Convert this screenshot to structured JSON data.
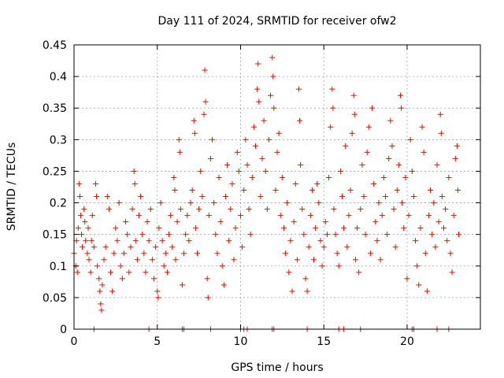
{
  "chart_data": {
    "type": "scatter",
    "title": "Day 111 of 2024, SRMTID for receiver ofw2",
    "xlabel": "GPS time / hours",
    "ylabel": "SRMTID / TECUs",
    "xlim": [
      0,
      24.4
    ],
    "ylim": [
      0,
      0.45
    ],
    "xticks": [
      0,
      5,
      10,
      15,
      20
    ],
    "xtick_labels": [
      "0",
      "5",
      "10",
      "15",
      "20"
    ],
    "yticks": [
      0,
      0.05,
      0.1,
      0.15,
      0.2,
      0.25,
      0.3,
      0.35,
      0.4,
      0.45
    ],
    "ytick_labels": [
      "0",
      "0.05",
      "0.1",
      "0.15",
      "0.2",
      "0.25",
      "0.3",
      "0.35",
      "0.4",
      "0.45"
    ],
    "grid": true,
    "marker": "+",
    "color": "#ff0000",
    "series": [
      {
        "name": "SRMTID",
        "points": [
          [
            0.0,
            0.12
          ],
          [
            0.1,
            0.1
          ],
          [
            0.15,
            0.14
          ],
          [
            0.2,
            0.09
          ],
          [
            0.25,
            0.16
          ],
          [
            0.3,
            0.23
          ],
          [
            0.35,
            0.21
          ],
          [
            0.4,
            0.18
          ],
          [
            0.45,
            0.15
          ],
          [
            0.5,
            0.13
          ],
          [
            0.6,
            0.19
          ],
          [
            0.65,
            0.17
          ],
          [
            0.7,
            0.14
          ],
          [
            0.8,
            0.12
          ],
          [
            0.85,
            0.16
          ],
          [
            0.9,
            0.11
          ],
          [
            1.0,
            0.09
          ],
          [
            1.05,
            0.14
          ],
          [
            1.1,
            0.18
          ],
          [
            1.2,
            0.13
          ],
          [
            1.3,
            0.23
          ],
          [
            1.35,
            0.21
          ],
          [
            1.4,
            0.1
          ],
          [
            1.5,
            0.08
          ],
          [
            1.55,
            0.06
          ],
          [
            1.6,
            0.04
          ],
          [
            1.65,
            0.03
          ],
          [
            1.7,
            0.07
          ],
          [
            1.8,
            0.11
          ],
          [
            1.9,
            0.13
          ],
          [
            2.0,
            0.21
          ],
          [
            2.1,
            0.19
          ],
          [
            2.2,
            0.09
          ],
          [
            2.3,
            0.06
          ],
          [
            2.4,
            0.12
          ],
          [
            2.5,
            0.16
          ],
          [
            2.6,
            0.14
          ],
          [
            2.7,
            0.2
          ],
          [
            2.8,
            0.1
          ],
          [
            2.9,
            0.08
          ],
          [
            3.0,
            0.12
          ],
          [
            3.1,
            0.17
          ],
          [
            3.2,
            0.15
          ],
          [
            3.3,
            0.09
          ],
          [
            3.4,
            0.13
          ],
          [
            3.5,
            0.19
          ],
          [
            3.6,
            0.25
          ],
          [
            3.65,
            0.23
          ],
          [
            3.7,
            0.14
          ],
          [
            3.8,
            0.11
          ],
          [
            3.9,
            0.18
          ],
          [
            4.0,
            0.21
          ],
          [
            4.1,
            0.15
          ],
          [
            4.2,
            0.12
          ],
          [
            4.3,
            0.09
          ],
          [
            4.4,
            0.17
          ],
          [
            4.5,
            0.14
          ],
          [
            4.6,
            0.19
          ],
          [
            4.7,
            0.11
          ],
          [
            4.8,
            0.08
          ],
          [
            4.9,
            0.13
          ],
          [
            5.0,
            0.06
          ],
          [
            5.05,
            0.05
          ],
          [
            5.1,
            0.16
          ],
          [
            5.2,
            0.2
          ],
          [
            5.3,
            0.14
          ],
          [
            5.4,
            0.1
          ],
          [
            5.5,
            0.12
          ],
          [
            5.6,
            0.09
          ],
          [
            5.7,
            0.15
          ],
          [
            5.8,
            0.18
          ],
          [
            5.9,
            0.13
          ],
          [
            6.0,
            0.24
          ],
          [
            6.05,
            0.22
          ],
          [
            6.1,
            0.11
          ],
          [
            6.2,
            0.17
          ],
          [
            6.3,
            0.3
          ],
          [
            6.35,
            0.28
          ],
          [
            6.4,
            0.19
          ],
          [
            6.5,
            0.07
          ],
          [
            6.6,
            0.12
          ],
          [
            6.7,
            0.15
          ],
          [
            6.8,
            0.18
          ],
          [
            6.9,
            0.14
          ],
          [
            7.0,
            0.2
          ],
          [
            7.1,
            0.22
          ],
          [
            7.2,
            0.33
          ],
          [
            7.25,
            0.31
          ],
          [
            7.3,
            0.16
          ],
          [
            7.4,
            0.12
          ],
          [
            7.5,
            0.19
          ],
          [
            7.6,
            0.25
          ],
          [
            7.7,
            0.21
          ],
          [
            7.8,
            0.34
          ],
          [
            7.85,
            0.41
          ],
          [
            7.9,
            0.36
          ],
          [
            8.0,
            0.08
          ],
          [
            8.05,
            0.05
          ],
          [
            8.1,
            0.18
          ],
          [
            8.2,
            0.27
          ],
          [
            8.3,
            0.3
          ],
          [
            8.4,
            0.2
          ],
          [
            8.5,
            0.15
          ],
          [
            8.6,
            0.12
          ],
          [
            8.7,
            0.24
          ],
          [
            8.8,
            0.17
          ],
          [
            8.9,
            0.1
          ],
          [
            9.0,
            0.07
          ],
          [
            9.1,
            0.21
          ],
          [
            9.2,
            0.26
          ],
          [
            9.3,
            0.14
          ],
          [
            9.4,
            0.19
          ],
          [
            9.5,
            0.23
          ],
          [
            9.6,
            0.11
          ],
          [
            9.7,
            0.16
          ],
          [
            9.8,
            0.28
          ],
          [
            9.9,
            0.25
          ],
          [
            10.0,
            0.18
          ],
          [
            10.1,
            0.13
          ],
          [
            10.2,
            0.22
          ],
          [
            10.3,
            0.3
          ],
          [
            10.4,
            0.26
          ],
          [
            10.5,
            0.19
          ],
          [
            10.6,
            0.15
          ],
          [
            10.7,
            0.24
          ],
          [
            10.8,
            0.32
          ],
          [
            10.9,
            0.29
          ],
          [
            11.0,
            0.38
          ],
          [
            11.05,
            0.42
          ],
          [
            11.1,
            0.36
          ],
          [
            11.2,
            0.21
          ],
          [
            11.3,
            0.27
          ],
          [
            11.4,
            0.33
          ],
          [
            11.5,
            0.25
          ],
          [
            11.6,
            0.19
          ],
          [
            11.7,
            0.3
          ],
          [
            11.8,
            0.37
          ],
          [
            11.9,
            0.43
          ],
          [
            11.95,
            0.4
          ],
          [
            12.0,
            0.35
          ],
          [
            12.1,
            0.22
          ],
          [
            12.2,
            0.28
          ],
          [
            12.3,
            0.31
          ],
          [
            12.4,
            0.18
          ],
          [
            12.5,
            0.24
          ],
          [
            12.6,
            0.16
          ],
          [
            12.7,
            0.12
          ],
          [
            12.8,
            0.2
          ],
          [
            12.9,
            0.09
          ],
          [
            13.0,
            0.14
          ],
          [
            13.1,
            0.06
          ],
          [
            13.2,
            0.17
          ],
          [
            13.3,
            0.23
          ],
          [
            13.4,
            0.11
          ],
          [
            13.5,
            0.38
          ],
          [
            13.55,
            0.33
          ],
          [
            13.6,
            0.26
          ],
          [
            13.7,
            0.19
          ],
          [
            13.8,
            0.15
          ],
          [
            13.9,
            0.08
          ],
          [
            14.0,
            0.06
          ],
          [
            14.1,
            0.13
          ],
          [
            14.2,
            0.18
          ],
          [
            14.3,
            0.22
          ],
          [
            14.4,
            0.11
          ],
          [
            14.5,
            0.16
          ],
          [
            14.6,
            0.23
          ],
          [
            14.7,
            0.2
          ],
          [
            14.8,
            0.14
          ],
          [
            14.9,
            0.1
          ],
          [
            15.0,
            0.13
          ],
          [
            15.1,
            0.17
          ],
          [
            15.2,
            0.15
          ],
          [
            15.3,
            0.24
          ],
          [
            15.4,
            0.32
          ],
          [
            15.5,
            0.38
          ],
          [
            15.55,
            0.35
          ],
          [
            15.6,
            0.19
          ],
          [
            15.7,
            0.15
          ],
          [
            15.8,
            0.12
          ],
          [
            15.9,
            0.1
          ],
          [
            16.0,
            0.25
          ],
          [
            16.1,
            0.21
          ],
          [
            16.2,
            0.16
          ],
          [
            16.3,
            0.29
          ],
          [
            16.4,
            0.13
          ],
          [
            16.5,
            0.18
          ],
          [
            16.6,
            0.22
          ],
          [
            16.7,
            0.31
          ],
          [
            16.8,
            0.37
          ],
          [
            16.85,
            0.34
          ],
          [
            16.9,
            0.11
          ],
          [
            17.0,
            0.16
          ],
          [
            17.1,
            0.09
          ],
          [
            17.2,
            0.19
          ],
          [
            17.3,
            0.26
          ],
          [
            17.4,
            0.21
          ],
          [
            17.5,
            0.15
          ],
          [
            17.6,
            0.28
          ],
          [
            17.7,
            0.32
          ],
          [
            17.8,
            0.12
          ],
          [
            17.9,
            0.35
          ],
          [
            18.0,
            0.23
          ],
          [
            18.1,
            0.17
          ],
          [
            18.2,
            0.14
          ],
          [
            18.3,
            0.2
          ],
          [
            18.4,
            0.11
          ],
          [
            18.5,
            0.18
          ],
          [
            18.6,
            0.24
          ],
          [
            18.7,
            0.21
          ],
          [
            18.8,
            0.15
          ],
          [
            18.9,
            0.27
          ],
          [
            19.0,
            0.33
          ],
          [
            19.1,
            0.29
          ],
          [
            19.2,
            0.19
          ],
          [
            19.3,
            0.13
          ],
          [
            19.4,
            0.22
          ],
          [
            19.5,
            0.26
          ],
          [
            19.6,
            0.37
          ],
          [
            19.65,
            0.35
          ],
          [
            19.7,
            0.2
          ],
          [
            19.8,
            0.16
          ],
          [
            19.9,
            0.24
          ],
          [
            20.0,
            0.08
          ],
          [
            20.1,
            0.18
          ],
          [
            20.2,
            0.3
          ],
          [
            20.3,
            0.25
          ],
          [
            20.4,
            0.21
          ],
          [
            20.5,
            0.14
          ],
          [
            20.6,
            0.1
          ],
          [
            20.7,
            0.07
          ],
          [
            20.8,
            0.16
          ],
          [
            20.9,
            0.32
          ],
          [
            21.0,
            0.28
          ],
          [
            21.1,
            0.12
          ],
          [
            21.2,
            0.06
          ],
          [
            21.3,
            0.18
          ],
          [
            21.4,
            0.22
          ],
          [
            21.5,
            0.15
          ],
          [
            21.6,
            0.2
          ],
          [
            21.7,
            0.13
          ],
          [
            21.8,
            0.26
          ],
          [
            21.9,
            0.17
          ],
          [
            22.0,
            0.34
          ],
          [
            22.05,
            0.31
          ],
          [
            22.1,
            0.21
          ],
          [
            22.2,
            0.16
          ],
          [
            22.3,
            0.19
          ],
          [
            22.4,
            0.14
          ],
          [
            22.5,
            0.24
          ],
          [
            22.6,
            0.12
          ],
          [
            22.7,
            0.09
          ],
          [
            22.8,
            0.18
          ],
          [
            22.9,
            0.27
          ],
          [
            23.0,
            0.29
          ],
          [
            23.05,
            0.22
          ],
          [
            23.1,
            0.15
          ]
        ]
      }
    ],
    "baseline_points": [
      1.2,
      4.5,
      6.5,
      6.6,
      8.2,
      10.0,
      10.2,
      10.4,
      11.9,
      12.0,
      14.0,
      15.9,
      16.2,
      17.2,
      20.3,
      20.4,
      21.8,
      22.5
    ]
  }
}
